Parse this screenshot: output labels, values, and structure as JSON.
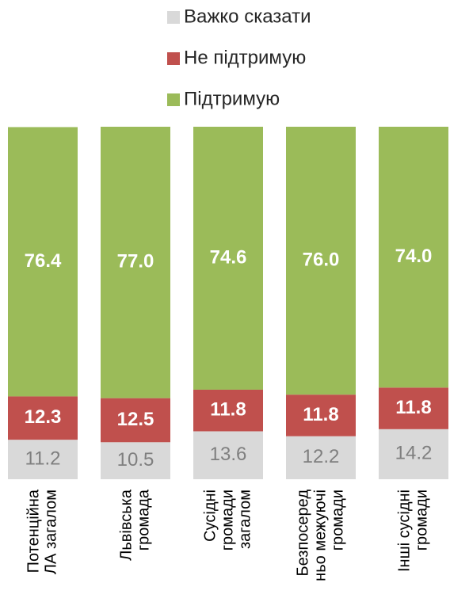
{
  "chart_data": {
    "type": "stacked_bar",
    "categories": [
      [
        "Потенційна",
        "ЛА загалом"
      ],
      [
        "Львівська",
        "громада"
      ],
      [
        "Сусідні",
        "громади",
        "загалом"
      ],
      [
        "Безпосеред",
        "ньо межуючі",
        "громади"
      ],
      [
        "Інші сусідні",
        "громади"
      ]
    ],
    "series": [
      {
        "name": "Важко сказати",
        "color": "#d9d9d9",
        "values": [
          11.2,
          10.5,
          13.6,
          12.2,
          14.2
        ]
      },
      {
        "name": "Не підтримую",
        "color": "#c0504d",
        "values": [
          12.3,
          12.5,
          11.8,
          11.8,
          11.8
        ]
      },
      {
        "name": "Підтримую",
        "color": "#9bbb59",
        "values": [
          76.4,
          77.0,
          74.6,
          76.0,
          74.0
        ],
        "value_labels": [
          "76.4",
          "77.0",
          "74.6",
          "76.0",
          "74.0"
        ]
      }
    ],
    "ylim": [
      0,
      100
    ]
  }
}
